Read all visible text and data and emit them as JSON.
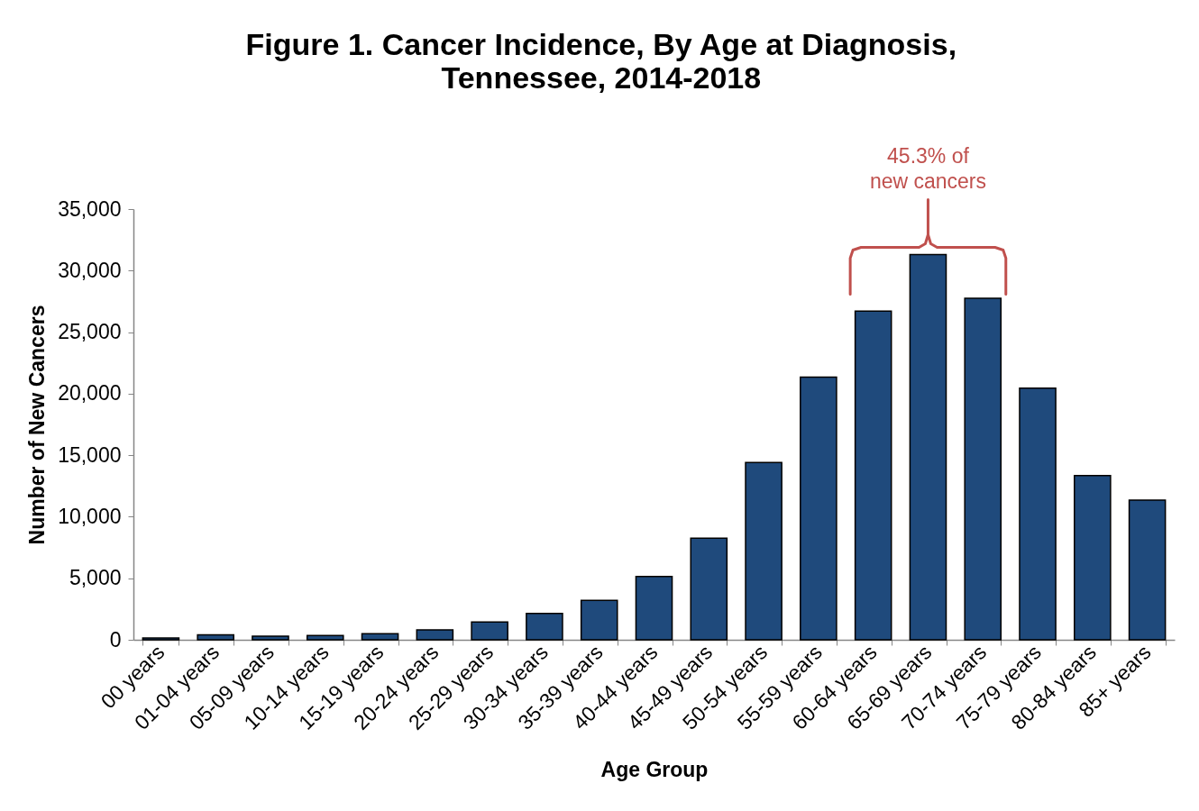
{
  "chart_data": {
    "type": "bar",
    "title": "Figure 1. Cancer Incidence, By Age at Diagnosis,\nTennessee, 2014-2018",
    "xlabel": "Age Group",
    "ylabel": "Number of New Cancers",
    "categories": [
      "00 years",
      "01-04 years",
      "05-09 years",
      "10-14 years",
      "15-19 years",
      "20-24 years",
      "25-29 years",
      "30-34 years",
      "35-39 years",
      "40-44 years",
      "45-49 years",
      "50-54 years",
      "55-59 years",
      "60-64 years",
      "65-69 years",
      "70-74 years",
      "75-79 years",
      "80-84 years",
      "85+ years"
    ],
    "values": [
      150,
      400,
      300,
      350,
      500,
      800,
      1450,
      2150,
      3200,
      5150,
      8250,
      14400,
      21350,
      26700,
      31300,
      27750,
      20450,
      13350,
      11350
    ],
    "color": "#1f4a7c",
    "ylim": [
      0,
      35000
    ],
    "yticks": [
      0,
      {
        "value": 5000,
        "label": "5,000"
      },
      {
        "value": 10000,
        "label": "10,000"
      },
      {
        "value": 15000,
        "label": "15,000"
      },
      {
        "value": 20000,
        "label": "20,000"
      },
      {
        "value": 25000,
        "label": "25,000"
      },
      {
        "value": 30000,
        "label": "30,000"
      },
      {
        "value": 35000,
        "label": "35,000"
      }
    ],
    "annotations": [
      "45.3% of\nnew cancers"
    ]
  }
}
